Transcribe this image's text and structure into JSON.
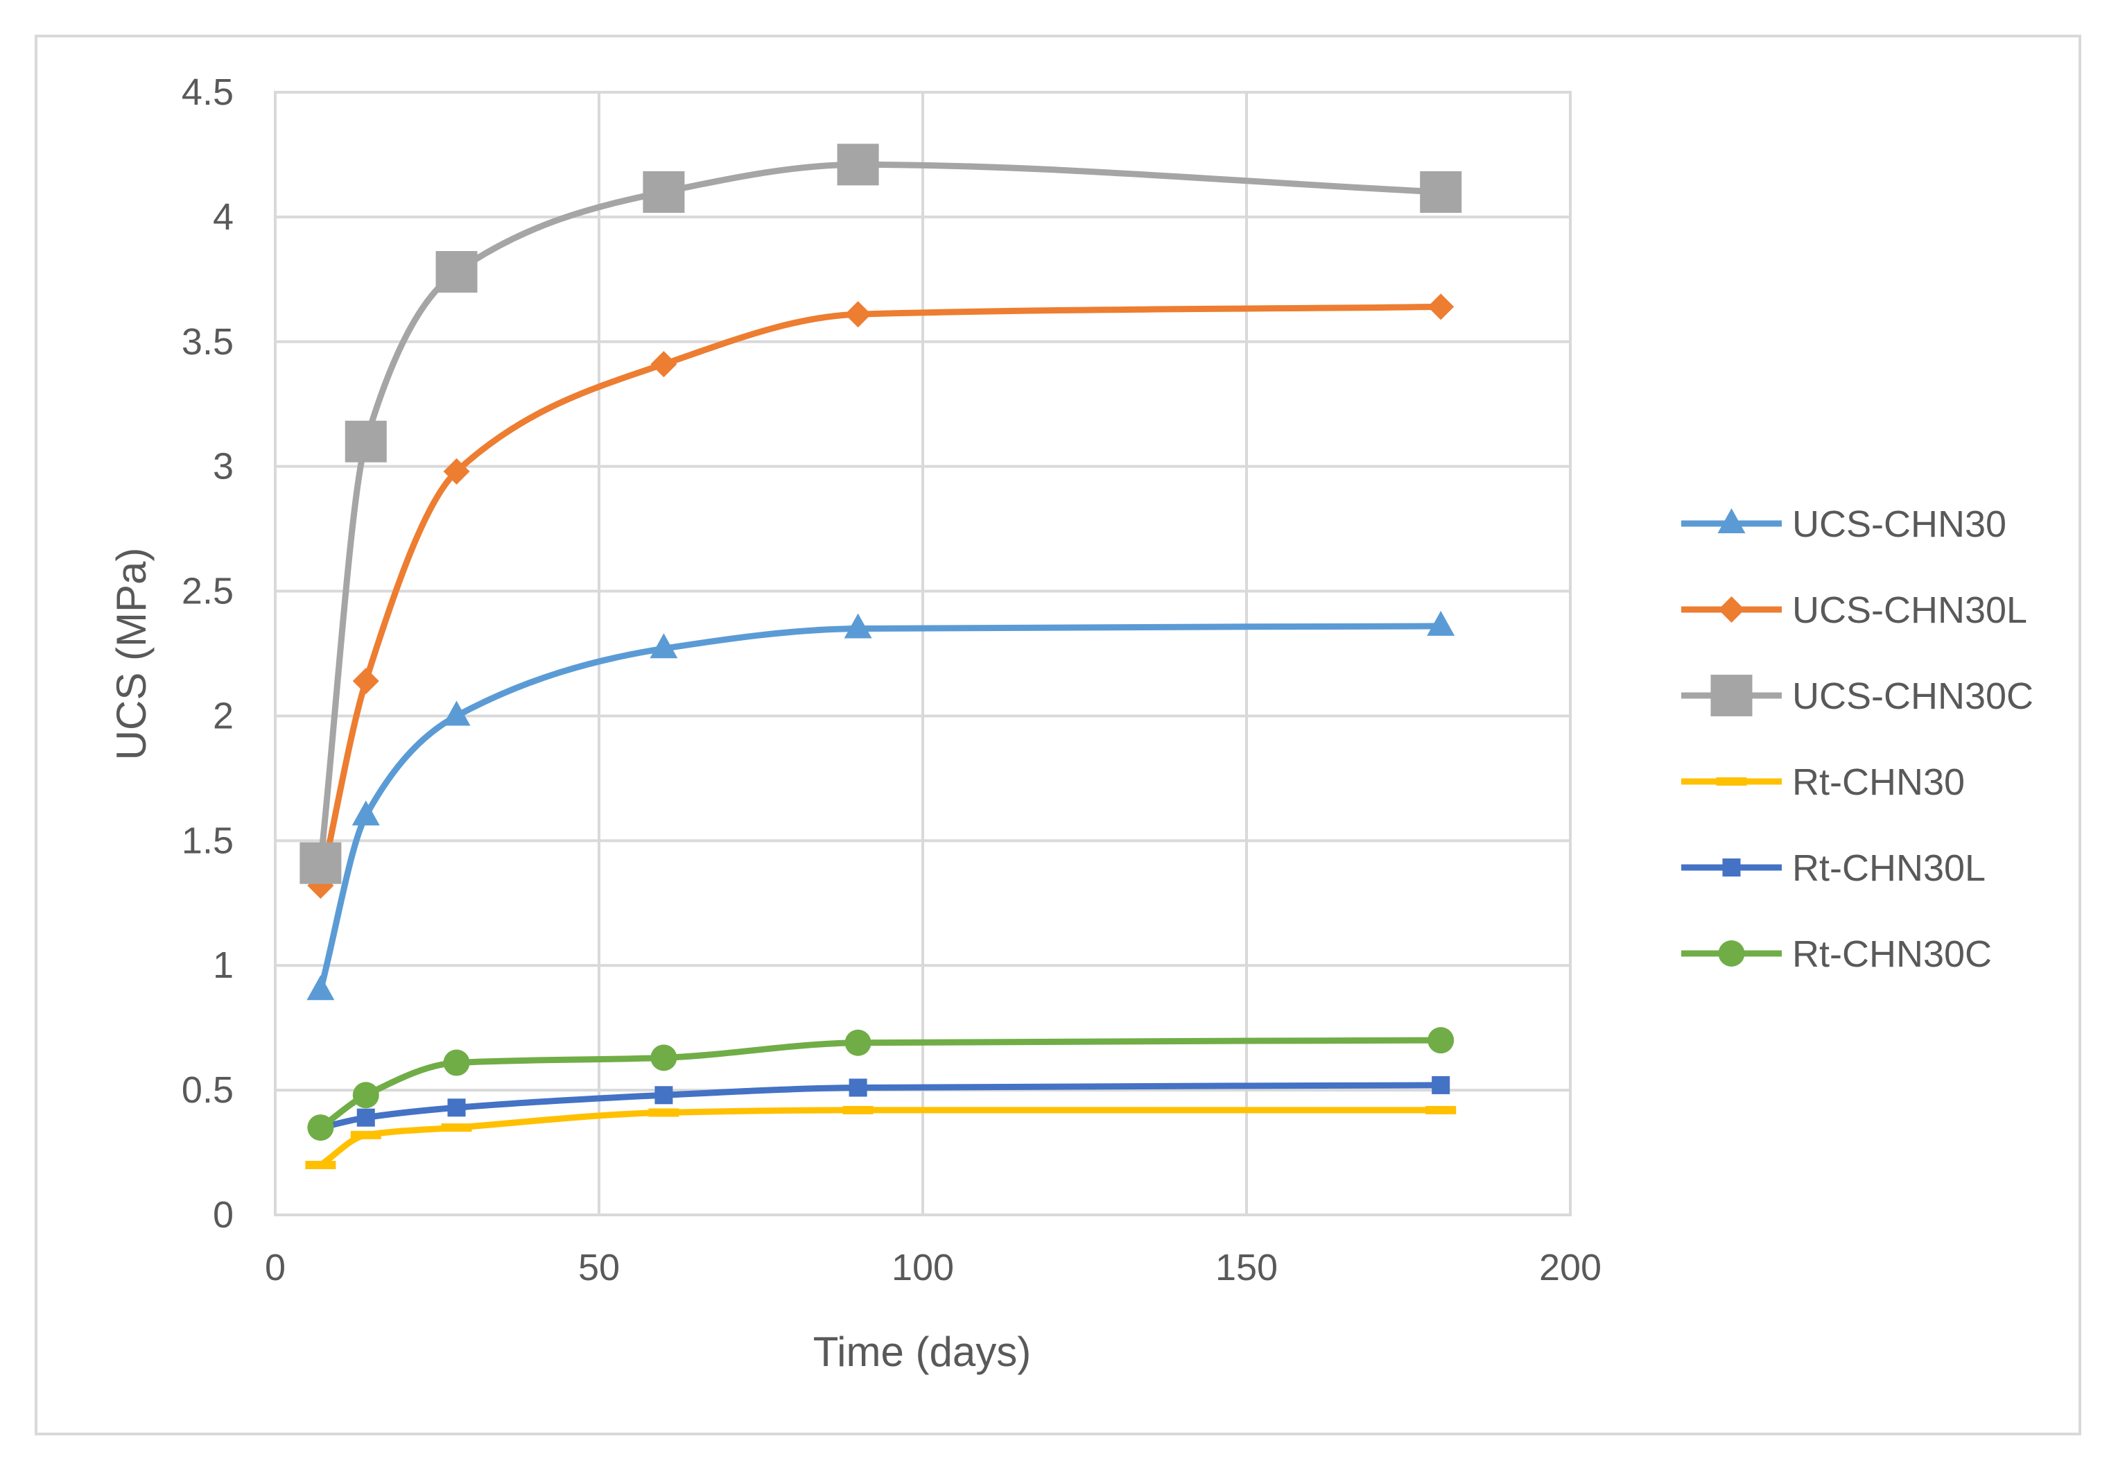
{
  "chart_data": {
    "type": "line",
    "title": "",
    "xlabel": "Time (days)",
    "ylabel": "UCS (MPa)",
    "xlim": [
      0,
      200
    ],
    "ylim": [
      0,
      4.5
    ],
    "x_ticks": [
      "0",
      "50",
      "100",
      "150",
      "200"
    ],
    "y_ticks": [
      "0",
      "0.5",
      "1",
      "1.5",
      "2",
      "2.5",
      "3",
      "3.5",
      "4",
      "4.5"
    ],
    "grid": true,
    "legend_position": "right",
    "smoothed": true,
    "series": [
      {
        "name": "UCS-CHN30",
        "color": "#5b9bd5",
        "marker": "triangle",
        "x": [
          7,
          14,
          28,
          60,
          90,
          180
        ],
        "y": [
          0.9,
          1.6,
          2.0,
          2.27,
          2.35,
          2.36
        ]
      },
      {
        "name": "UCS-CHN30L",
        "color": "#ed7d31",
        "marker": "diamond",
        "x": [
          7,
          14,
          28,
          60,
          90,
          180
        ],
        "y": [
          1.32,
          2.14,
          2.98,
          3.41,
          3.61,
          3.64
        ]
      },
      {
        "name": "UCS-CHN30C",
        "color": "#a5a5a5",
        "marker": "square",
        "x": [
          7,
          14,
          28,
          60,
          90,
          180
        ],
        "y": [
          1.41,
          3.1,
          3.78,
          4.1,
          4.21,
          4.1
        ]
      },
      {
        "name": "Rt-CHN30",
        "color": "#ffc000",
        "marker": "dash",
        "x": [
          7,
          14,
          28,
          60,
          90,
          180
        ],
        "y": [
          0.2,
          0.32,
          0.35,
          0.41,
          0.42,
          0.42
        ]
      },
      {
        "name": "Rt-CHN30L",
        "color": "#4472c4",
        "marker": "smallsquare",
        "x": [
          7,
          14,
          28,
          60,
          90,
          180
        ],
        "y": [
          0.35,
          0.39,
          0.43,
          0.48,
          0.51,
          0.52
        ]
      },
      {
        "name": "Rt-CHN30C",
        "color": "#70ad47",
        "marker": "circle",
        "x": [
          7,
          14,
          28,
          60,
          90,
          180
        ],
        "y": [
          0.35,
          0.48,
          0.61,
          0.63,
          0.69,
          0.7
        ]
      }
    ]
  }
}
